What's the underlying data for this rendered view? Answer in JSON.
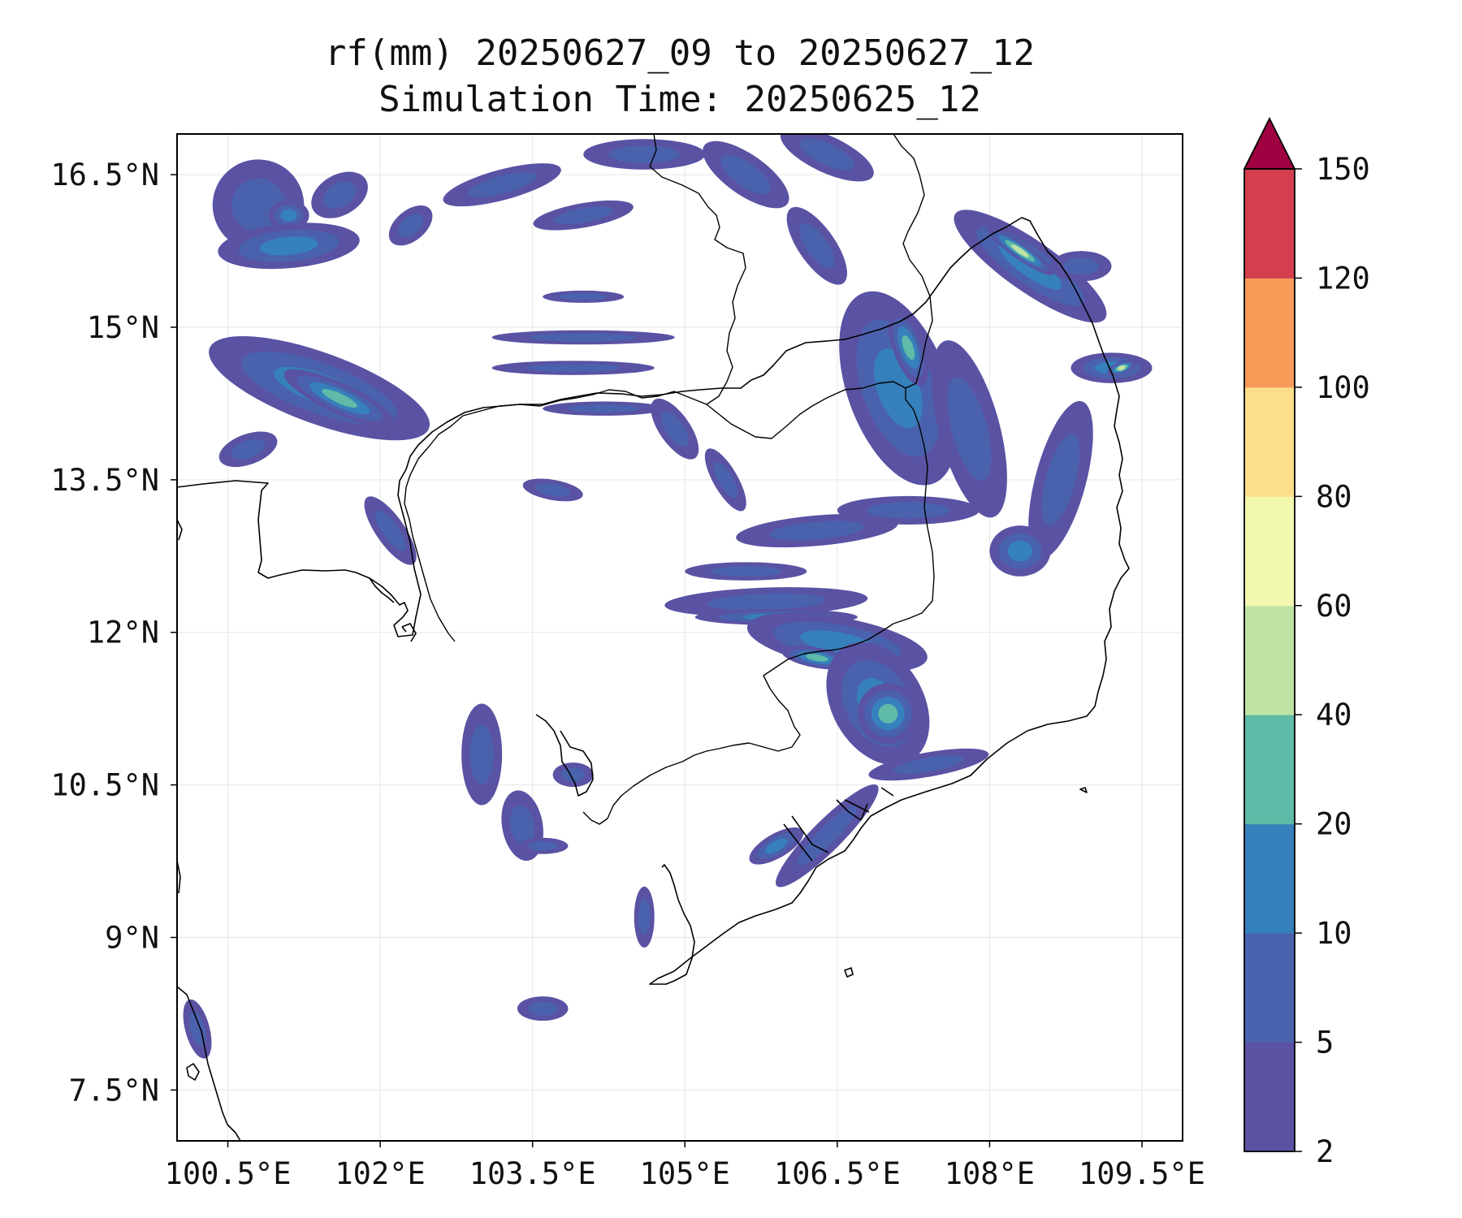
{
  "title_line1": "rf(mm) 20250627_09 to 20250627_12",
  "title_line2": "Simulation Time: 20250625_12",
  "map": {
    "lon_range": [
      100.0,
      109.9
    ],
    "lat_range": [
      7.0,
      16.9
    ],
    "lon_ticks": [
      {
        "value": 100.5,
        "label": "100.5°E"
      },
      {
        "value": 102.0,
        "label": "102°E"
      },
      {
        "value": 103.5,
        "label": "103.5°E"
      },
      {
        "value": 105.0,
        "label": "105°E"
      },
      {
        "value": 106.5,
        "label": "106.5°E"
      },
      {
        "value": 108.0,
        "label": "108°E"
      },
      {
        "value": 109.5,
        "label": "109.5°E"
      }
    ],
    "lat_ticks": [
      {
        "value": 16.5,
        "label": "16.5°N"
      },
      {
        "value": 15.0,
        "label": "15°N"
      },
      {
        "value": 13.5,
        "label": "13.5°N"
      },
      {
        "value": 12.0,
        "label": "12°N"
      },
      {
        "value": 10.5,
        "label": "10.5°N"
      },
      {
        "value": 9.0,
        "label": "9°N"
      },
      {
        "value": 7.5,
        "label": "7.5°N"
      }
    ],
    "gridlines": true
  },
  "colorbar": {
    "extend": "max",
    "bounds": [
      2,
      5,
      10,
      20,
      40,
      60,
      80,
      100,
      120,
      150
    ],
    "labels": [
      "2",
      "5",
      "10",
      "20",
      "40",
      "60",
      "80",
      "100",
      "120",
      "150"
    ],
    "colors": [
      "#5a52a3",
      "#4a62ae",
      "#3680bb",
      "#5fbaa8",
      "#bfe3a4",
      "#f2f8ae",
      "#fddf8a",
      "#f99b58",
      "#d43f4f"
    ],
    "extend_color": "#9e0142"
  },
  "rain_cells": [
    {
      "lon": 100.8,
      "lat": 16.2,
      "rx": 0.45,
      "ry": 0.45,
      "ang": -20,
      "level": 1
    },
    {
      "lon": 101.1,
      "lat": 16.1,
      "rx": 0.2,
      "ry": 0.15,
      "ang": 0,
      "level": 2
    },
    {
      "lon": 101.1,
      "lat": 15.8,
      "rx": 0.7,
      "ry": 0.22,
      "ang": -5,
      "level": 2
    },
    {
      "lon": 101.6,
      "lat": 16.3,
      "rx": 0.3,
      "ry": 0.2,
      "ang": -30,
      "level": 1
    },
    {
      "lon": 102.3,
      "lat": 16.0,
      "rx": 0.25,
      "ry": 0.15,
      "ang": -40,
      "level": 1
    },
    {
      "lon": 103.2,
      "lat": 16.4,
      "rx": 0.6,
      "ry": 0.15,
      "ang": -15,
      "level": 1
    },
    {
      "lon": 104.0,
      "lat": 16.1,
      "rx": 0.5,
      "ry": 0.12,
      "ang": -10,
      "level": 1
    },
    {
      "lon": 104.6,
      "lat": 16.7,
      "rx": 0.6,
      "ry": 0.15,
      "ang": 0,
      "level": 1
    },
    {
      "lon": 105.6,
      "lat": 16.5,
      "rx": 0.5,
      "ry": 0.2,
      "ang": 35,
      "level": 1
    },
    {
      "lon": 106.4,
      "lat": 16.7,
      "rx": 0.5,
      "ry": 0.18,
      "ang": 25,
      "level": 1
    },
    {
      "lon": 106.3,
      "lat": 15.8,
      "rx": 0.45,
      "ry": 0.18,
      "ang": 55,
      "level": 1
    },
    {
      "lon": 101.4,
      "lat": 14.4,
      "rx": 1.15,
      "ry": 0.35,
      "ang": 20,
      "level": 2
    },
    {
      "lon": 101.6,
      "lat": 14.3,
      "rx": 0.6,
      "ry": 0.15,
      "ang": 25,
      "level": 3
    },
    {
      "lon": 100.7,
      "lat": 13.8,
      "rx": 0.3,
      "ry": 0.15,
      "ang": -20,
      "level": 1
    },
    {
      "lon": 104.0,
      "lat": 14.9,
      "rx": 0.9,
      "ry": 0.07,
      "ang": 0,
      "level": 1
    },
    {
      "lon": 103.9,
      "lat": 14.6,
      "rx": 0.8,
      "ry": 0.07,
      "ang": 0,
      "level": 1
    },
    {
      "lon": 104.0,
      "lat": 15.3,
      "rx": 0.4,
      "ry": 0.06,
      "ang": 0,
      "level": 1
    },
    {
      "lon": 104.2,
      "lat": 14.2,
      "rx": 0.6,
      "ry": 0.07,
      "ang": 0,
      "level": 1
    },
    {
      "lon": 104.9,
      "lat": 14.0,
      "rx": 0.35,
      "ry": 0.15,
      "ang": 55,
      "level": 1
    },
    {
      "lon": 105.4,
      "lat": 13.5,
      "rx": 0.35,
      "ry": 0.12,
      "ang": 60,
      "level": 1
    },
    {
      "lon": 102.1,
      "lat": 13.0,
      "rx": 0.4,
      "ry": 0.14,
      "ang": 55,
      "level": 1
    },
    {
      "lon": 103.7,
      "lat": 13.4,
      "rx": 0.3,
      "ry": 0.1,
      "ang": 10,
      "level": 1
    },
    {
      "lon": 105.6,
      "lat": 12.6,
      "rx": 0.6,
      "ry": 0.09,
      "ang": 0,
      "level": 1
    },
    {
      "lon": 105.8,
      "lat": 12.3,
      "rx": 1.0,
      "ry": 0.14,
      "ang": -2,
      "level": 1
    },
    {
      "lon": 105.9,
      "lat": 12.15,
      "rx": 0.8,
      "ry": 0.08,
      "ang": 0,
      "level": 2
    },
    {
      "lon": 106.3,
      "lat": 13.0,
      "rx": 0.8,
      "ry": 0.15,
      "ang": -5,
      "level": 1
    },
    {
      "lon": 107.2,
      "lat": 13.2,
      "rx": 0.7,
      "ry": 0.14,
      "ang": 0,
      "level": 1
    },
    {
      "lon": 106.5,
      "lat": 11.9,
      "rx": 0.9,
      "ry": 0.25,
      "ang": 10,
      "level": 2
    },
    {
      "lon": 106.3,
      "lat": 11.75,
      "rx": 0.35,
      "ry": 0.1,
      "ang": 10,
      "level": 3
    },
    {
      "lon": 106.9,
      "lat": 11.3,
      "rx": 0.45,
      "ry": 0.65,
      "ang": -30,
      "level": 2
    },
    {
      "lon": 107.0,
      "lat": 11.2,
      "rx": 0.3,
      "ry": 0.3,
      "ang": 0,
      "level": 3
    },
    {
      "lon": 107.4,
      "lat": 10.7,
      "rx": 0.6,
      "ry": 0.12,
      "ang": -10,
      "level": 1
    },
    {
      "lon": 106.4,
      "lat": 10.0,
      "rx": 0.7,
      "ry": 0.15,
      "ang": -45,
      "level": 1
    },
    {
      "lon": 105.9,
      "lat": 9.9,
      "rx": 0.3,
      "ry": 0.12,
      "ang": -30,
      "level": 2
    },
    {
      "lon": 107.1,
      "lat": 14.4,
      "rx": 0.5,
      "ry": 1.0,
      "ang": -20,
      "level": 2
    },
    {
      "lon": 107.2,
      "lat": 14.8,
      "rx": 0.15,
      "ry": 0.4,
      "ang": -20,
      "level": 3
    },
    {
      "lon": 107.8,
      "lat": 14.0,
      "rx": 0.3,
      "ry": 0.9,
      "ang": -15,
      "level": 1
    },
    {
      "lon": 108.4,
      "lat": 15.6,
      "rx": 0.9,
      "ry": 0.25,
      "ang": 35,
      "level": 2
    },
    {
      "lon": 108.3,
      "lat": 15.75,
      "rx": 0.4,
      "ry": 0.08,
      "ang": 35,
      "level": 4
    },
    {
      "lon": 109.2,
      "lat": 14.6,
      "rx": 0.4,
      "ry": 0.15,
      "ang": 0,
      "level": 2
    },
    {
      "lon": 109.3,
      "lat": 14.6,
      "rx": 0.15,
      "ry": 0.06,
      "ang": -20,
      "level": 4
    },
    {
      "lon": 108.7,
      "lat": 13.5,
      "rx": 0.25,
      "ry": 0.8,
      "ang": 15,
      "level": 1
    },
    {
      "lon": 108.3,
      "lat": 12.8,
      "rx": 0.3,
      "ry": 0.25,
      "ang": 0,
      "level": 2
    },
    {
      "lon": 108.9,
      "lat": 15.6,
      "rx": 0.3,
      "ry": 0.15,
      "ang": 0,
      "level": 1
    },
    {
      "lon": 103.4,
      "lat": 10.1,
      "rx": 0.2,
      "ry": 0.35,
      "ang": -10,
      "level": 1
    },
    {
      "lon": 103.9,
      "lat": 10.6,
      "rx": 0.2,
      "ry": 0.12,
      "ang": 0,
      "level": 1
    },
    {
      "lon": 103.0,
      "lat": 10.8,
      "rx": 0.2,
      "ry": 0.5,
      "ang": 0,
      "level": 1
    },
    {
      "lon": 103.6,
      "lat": 8.3,
      "rx": 0.25,
      "ry": 0.12,
      "ang": 0,
      "level": 1
    },
    {
      "lon": 104.6,
      "lat": 9.2,
      "rx": 0.1,
      "ry": 0.3,
      "ang": 0,
      "level": 1
    },
    {
      "lon": 103.6,
      "lat": 9.9,
      "rx": 0.25,
      "ry": 0.08,
      "ang": 0,
      "level": 1
    },
    {
      "lon": 100.2,
      "lat": 8.1,
      "rx": 0.12,
      "ry": 0.3,
      "ang": -15,
      "level": 1
    }
  ]
}
